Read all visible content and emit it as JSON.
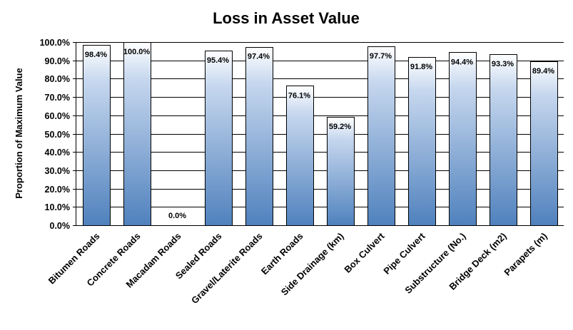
{
  "chart_data": {
    "type": "bar",
    "title": "Loss in Asset Value",
    "xlabel": "",
    "ylabel": "Proportion of Maximum Value",
    "ylim": [
      0,
      100
    ],
    "y_tick_values": [
      0,
      10,
      20,
      30,
      40,
      50,
      60,
      70,
      80,
      90,
      100
    ],
    "y_tick_labels": [
      "0.0%",
      "10.0%",
      "20.0%",
      "30.0%",
      "40.0%",
      "50.0%",
      "60.0%",
      "70.0%",
      "80.0%",
      "90.0%",
      "100.0%"
    ],
    "categories": [
      "Bitumen Roads",
      "Concrete Roads",
      "Macadam Roads",
      "Sealed Roads",
      "Gravel/Laterite Roads",
      "Earth Roads",
      "Side Drainage (km)",
      "Box Culvert",
      "Pipe Culvert",
      "Substructure (No.)",
      "Bridge Deck (m2)",
      "Parapets (m)"
    ],
    "values": [
      98.4,
      100.0,
      0.0,
      95.4,
      97.4,
      76.1,
      59.2,
      97.7,
      91.8,
      94.4,
      93.3,
      89.4
    ],
    "data_labels": [
      "98.4%",
      "100.0%",
      "0.0%",
      "95.4%",
      "97.4%",
      "76.1%",
      "59.2%",
      "97.7%",
      "91.8%",
      "94.4%",
      "93.3%",
      "89.4%"
    ],
    "grid": true,
    "legend": "none",
    "colors": {
      "bar_base": "#4f81bd",
      "bar_top": "#ffffff",
      "grid": "#000000"
    }
  }
}
